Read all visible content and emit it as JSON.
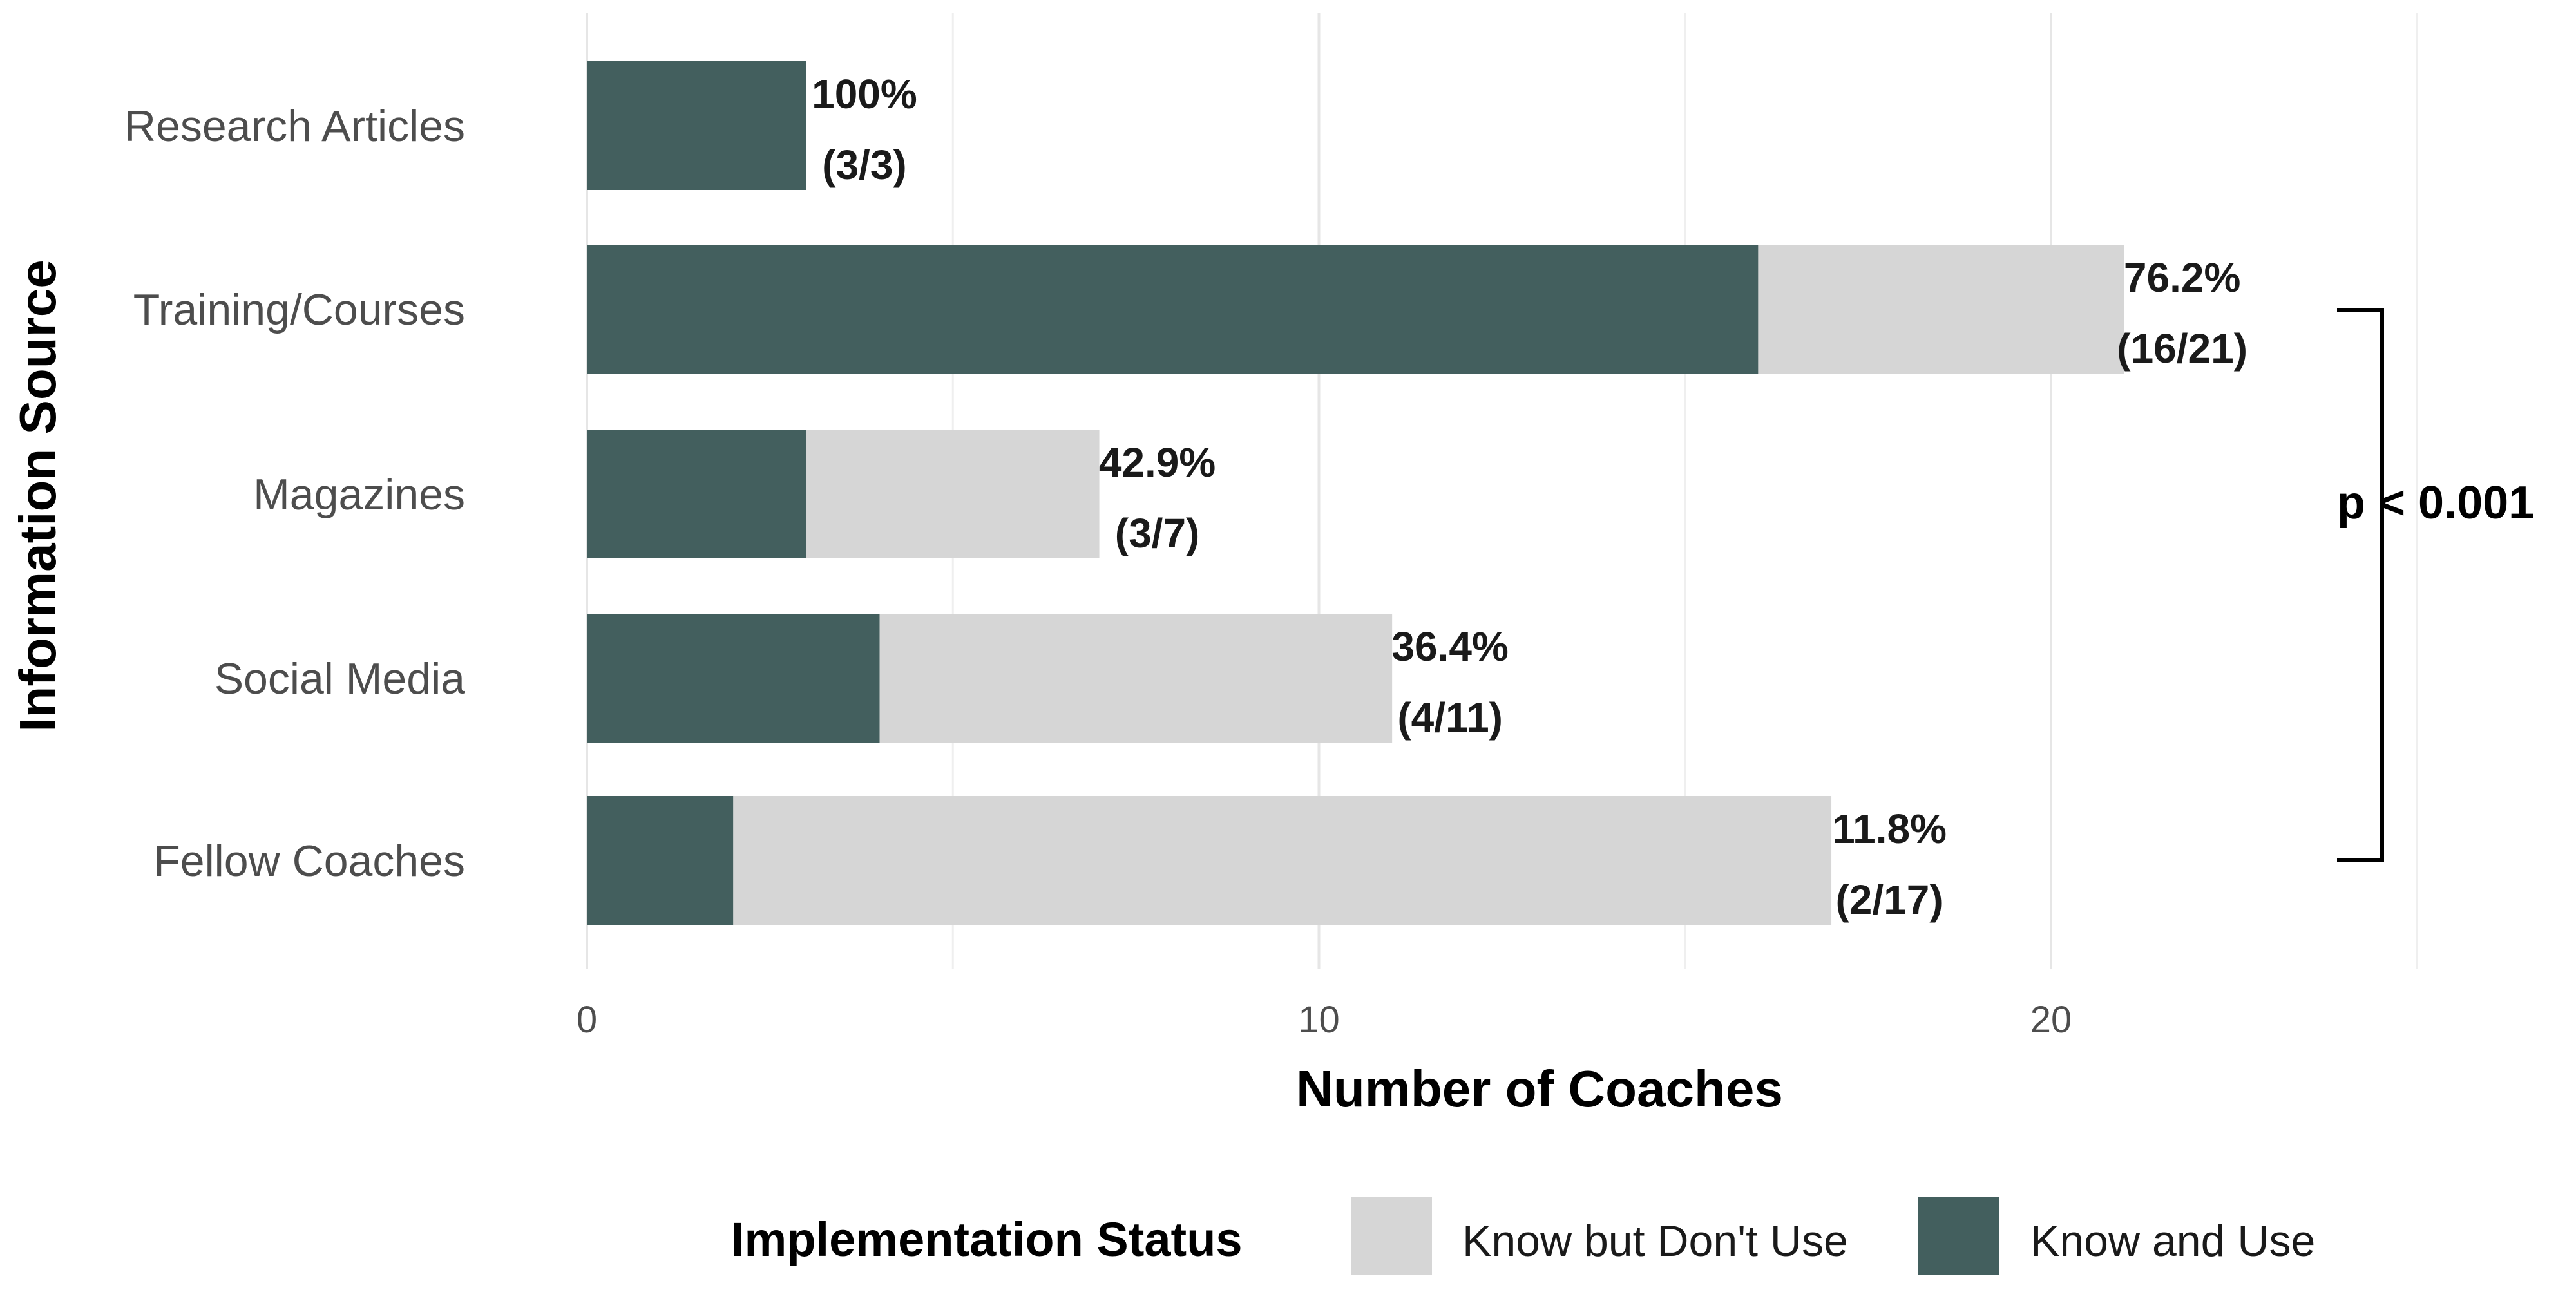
{
  "chart_data": {
    "type": "bar",
    "orientation": "horizontal",
    "stacked": true,
    "categories": [
      "Research Articles",
      "Training/Courses",
      "Magazines",
      "Social Media",
      "Fellow Coaches"
    ],
    "series": [
      {
        "name": "Know and Use",
        "values": [
          3,
          16,
          3,
          4,
          2
        ],
        "color": "#435f5e"
      },
      {
        "name": "Know but Don't Use",
        "values": [
          0,
          5,
          4,
          7,
          15
        ],
        "color": "#d6d6d6"
      }
    ],
    "labels_pct": [
      "100%",
      "76.2%",
      "42.9%",
      "36.4%",
      "11.8%"
    ],
    "labels_frac": [
      "(3/3)",
      "(16/21)",
      "(3/7)",
      "(4/11)",
      "(2/17)"
    ],
    "xlabel": "Number of Coaches",
    "ylabel": "Information Source",
    "xlim": [
      0,
      25
    ],
    "xticks": [
      0,
      10,
      20
    ],
    "grid": true,
    "legend": {
      "title": "Implementation Status",
      "placement": "bottom",
      "items": [
        {
          "label": "Know but Don't Use",
          "color": "#d6d6d6"
        },
        {
          "label": "Know and Use",
          "color": "#435f5e"
        }
      ]
    },
    "annotation": {
      "text": "p < 0.001",
      "spans": [
        "Training/Courses",
        "Fellow Coaches"
      ]
    }
  }
}
